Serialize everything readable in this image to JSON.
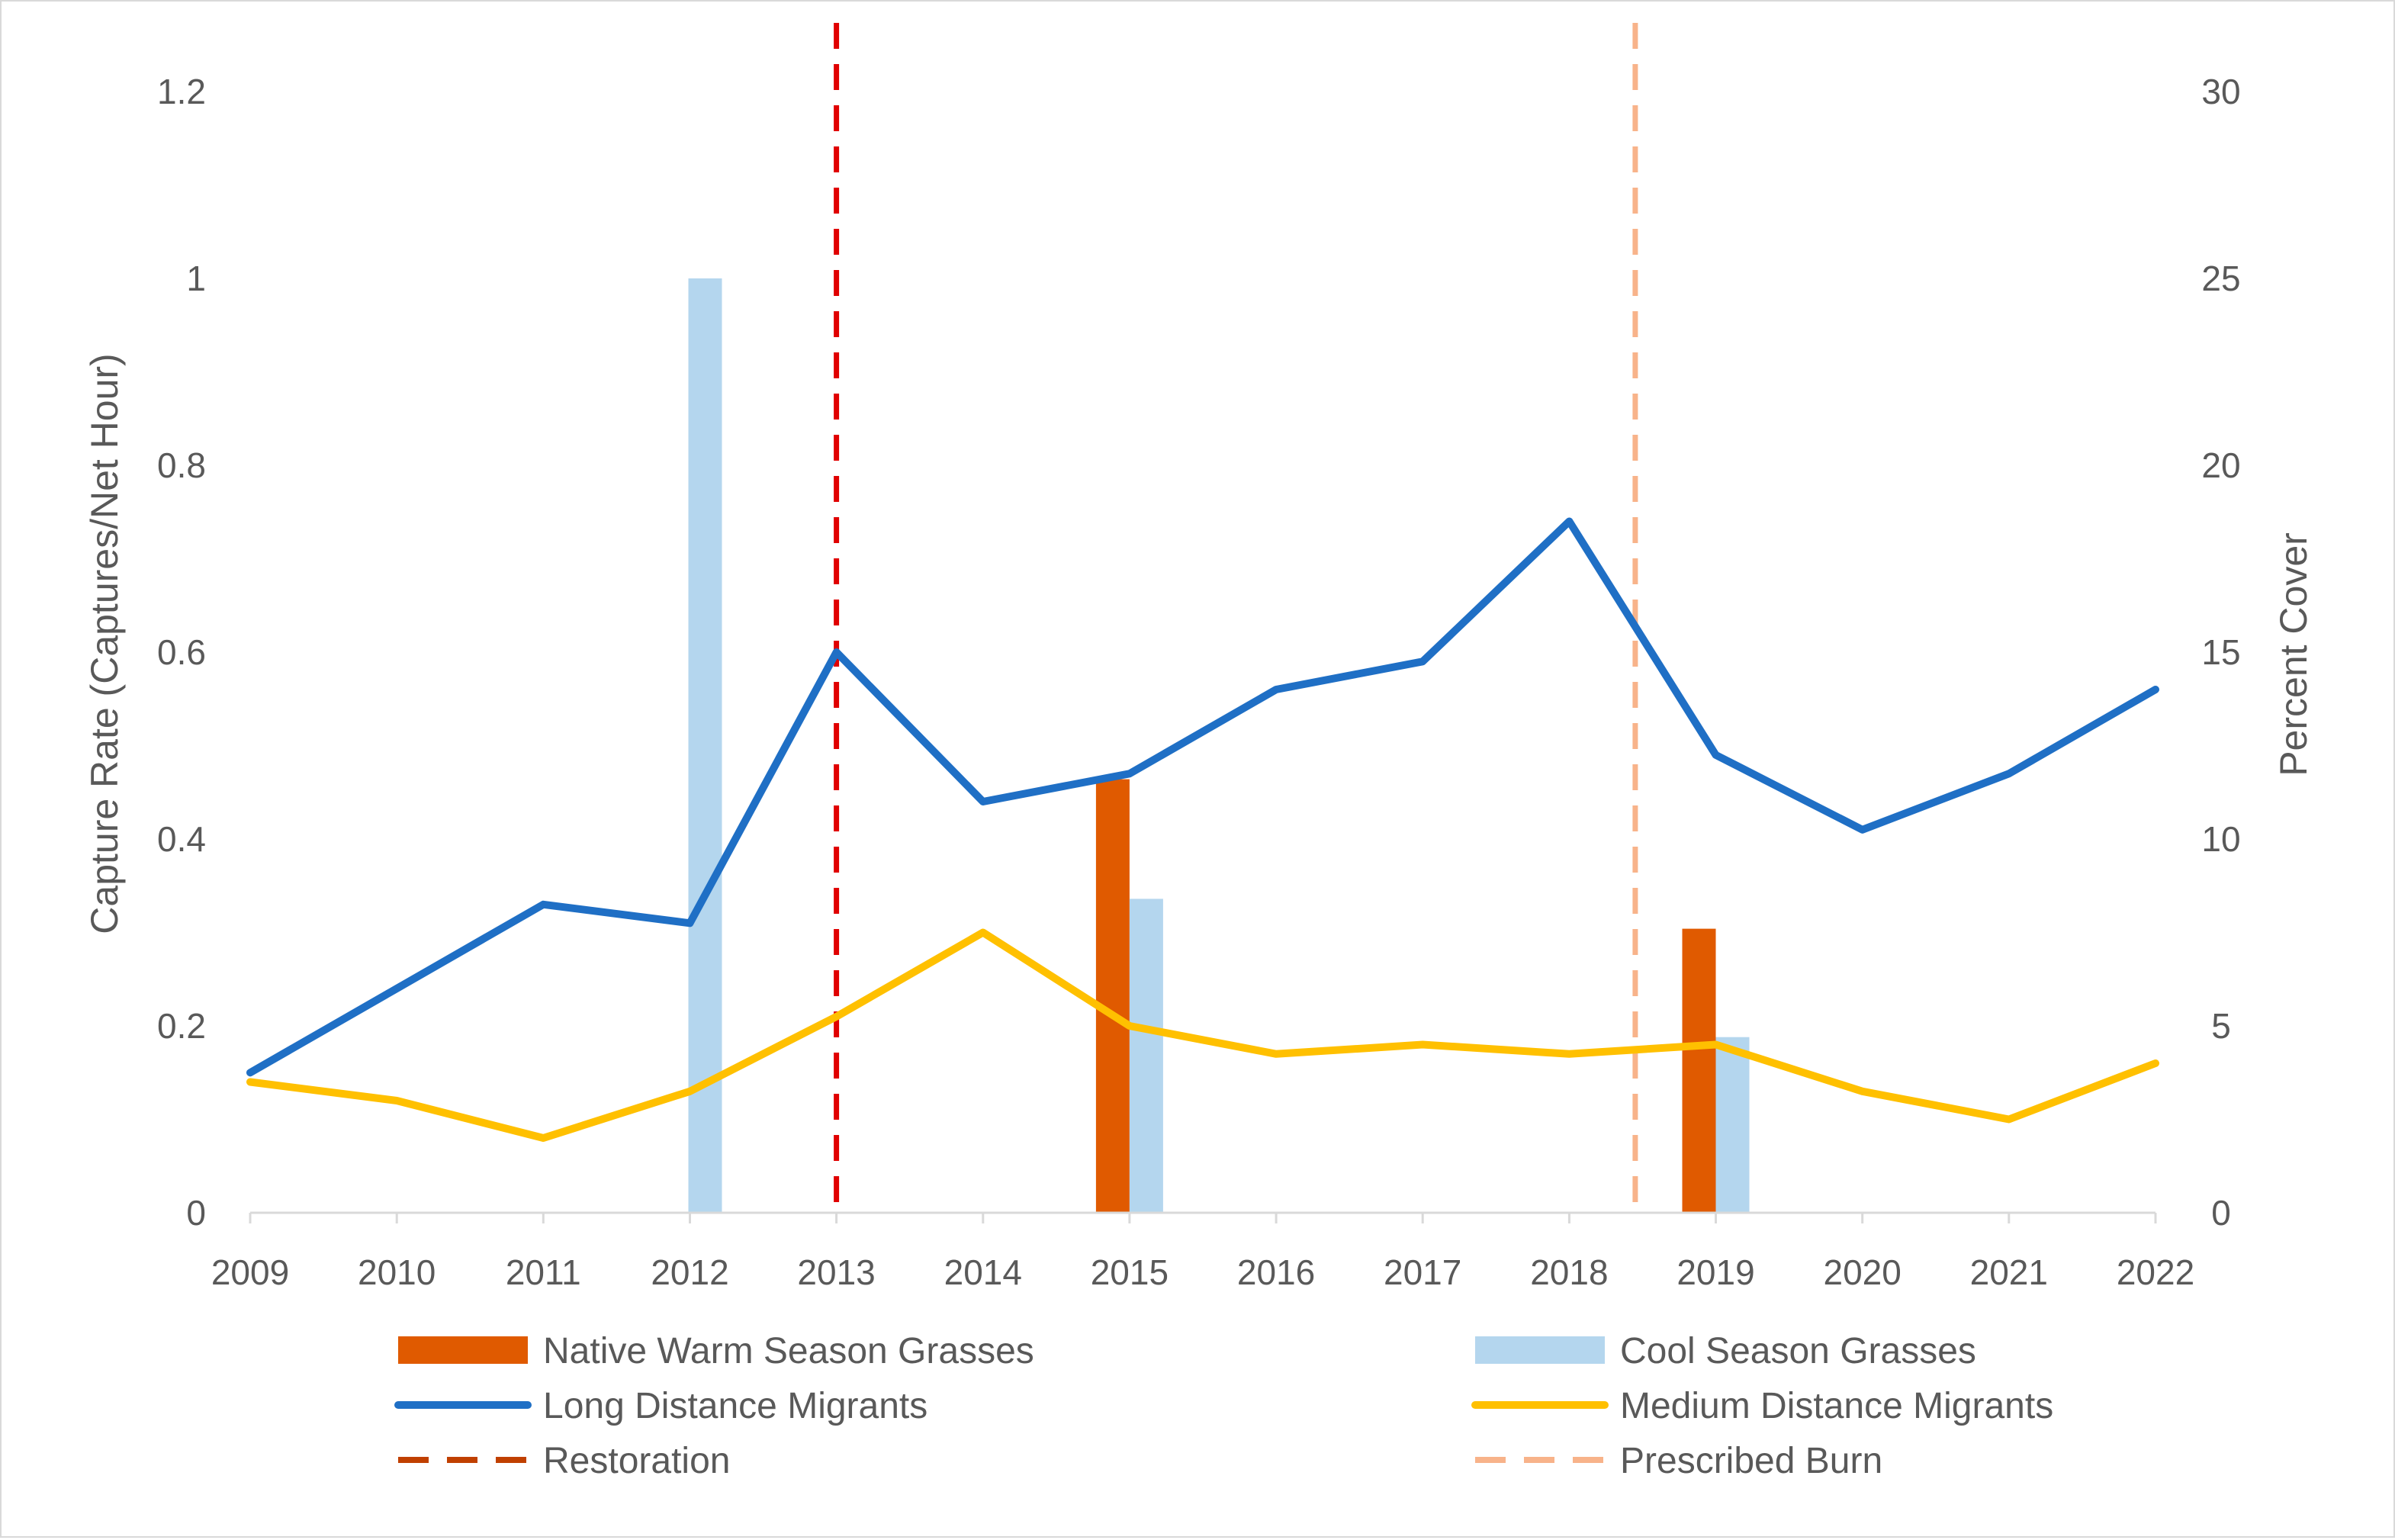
{
  "chart_data": {
    "type": "bar+line",
    "title": "",
    "xlabel": "",
    "ylabel": "Capture Rate (Captures/Net Hour)",
    "y2label": "Percent Cover",
    "categories": [
      "2009",
      "2010",
      "2011",
      "2012",
      "2013",
      "2014",
      "2015",
      "2016",
      "2017",
      "2018",
      "2019",
      "2020",
      "2021",
      "2022"
    ],
    "ylim": [
      0,
      1.2
    ],
    "yticks": [
      "0",
      "0.2",
      "0.4",
      "0.6",
      "0.8",
      "1",
      "1.2"
    ],
    "y2lim": [
      0,
      30
    ],
    "y2ticks": [
      "0",
      "5",
      "10",
      "15",
      "20",
      "25",
      "30"
    ],
    "grid": false,
    "legend_position": "bottom",
    "bar_series": [
      {
        "name": "Native Warm Season Grasses",
        "axis": "right",
        "color": "#e05a00",
        "values": [
          null,
          null,
          null,
          null,
          null,
          null,
          11.6,
          null,
          null,
          null,
          7.6,
          null,
          null,
          null
        ]
      },
      {
        "name": "Cool Season Grasses",
        "axis": "right",
        "color": "#b4d6ee",
        "values": [
          null,
          null,
          null,
          25.0,
          null,
          null,
          8.4,
          null,
          null,
          null,
          4.7,
          null,
          null,
          null
        ]
      }
    ],
    "line_series": [
      {
        "name": "Long Distance Migrants",
        "axis": "left",
        "color": "#1f6fc5",
        "values": [
          0.15,
          0.24,
          0.33,
          0.31,
          0.6,
          0.44,
          0.47,
          0.56,
          0.59,
          0.74,
          0.49,
          0.41,
          0.47,
          0.56
        ]
      },
      {
        "name": "Medium Distance Migrants",
        "axis": "left",
        "color": "#ffc000",
        "values": [
          0.14,
          0.12,
          0.08,
          0.13,
          0.21,
          0.3,
          0.2,
          0.17,
          0.18,
          0.17,
          0.18,
          0.13,
          0.1,
          0.16
        ]
      }
    ],
    "vertical_markers": [
      {
        "name": "Restoration",
        "x": 2013,
        "color": "#e00000",
        "legend_color": "#c04000",
        "style": "dashed"
      },
      {
        "name": "Prescribed Burn",
        "x": 2018.45,
        "color": "#f8b38a",
        "legend_color": "#f8b38a",
        "style": "dashed"
      }
    ]
  }
}
